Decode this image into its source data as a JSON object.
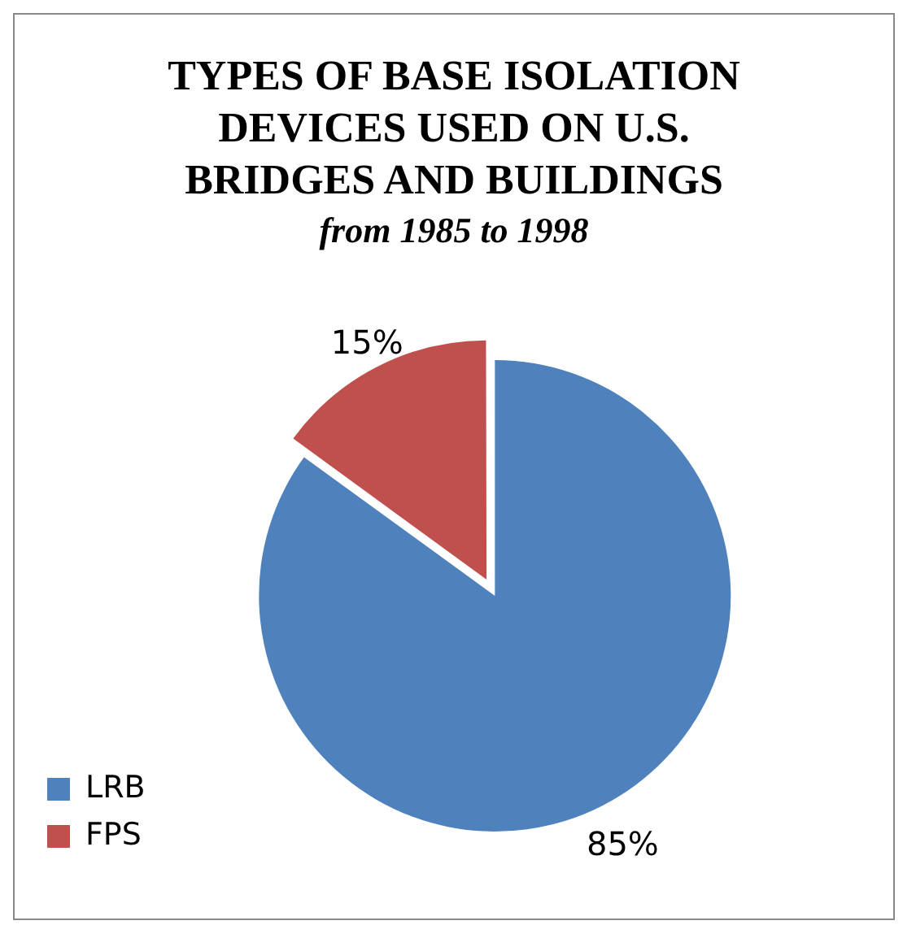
{
  "chart_data": {
    "type": "pie",
    "title": "TYPES OF BASE ISOLATION DEVICES USED ON U.S. BRIDGES AND BUILDINGS",
    "subtitle": "from 1985 to 1998",
    "categories": [
      "LRB",
      "FPS"
    ],
    "values": [
      85,
      15
    ],
    "colors": [
      "#4f81bd",
      "#c0504d"
    ],
    "value_labels": [
      "85%",
      "15%"
    ],
    "legend": "left"
  }
}
